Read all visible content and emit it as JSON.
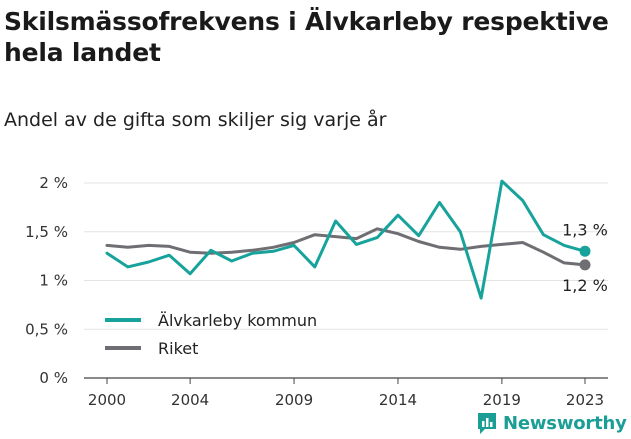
{
  "title": "Skilsmässofrekvens i Älvkarleby respektive hela landet",
  "subtitle": "Andel av de gifta som skiljer sig varje år",
  "brand": {
    "name": "Newsworthy",
    "color": "#1a9e96"
  },
  "chart_data": {
    "type": "line",
    "x": [
      2000,
      2001,
      2002,
      2003,
      2004,
      2005,
      2006,
      2007,
      2008,
      2009,
      2010,
      2011,
      2012,
      2013,
      2014,
      2015,
      2016,
      2017,
      2018,
      2019,
      2020,
      2021,
      2022,
      2023
    ],
    "x_ticks": [
      2000,
      2004,
      2009,
      2014,
      2019,
      2023
    ],
    "ylim": [
      0,
      2
    ],
    "y_ticks": [
      0,
      0.5,
      1,
      1.5,
      2
    ],
    "y_tick_labels": [
      "0 %",
      "0,5 %",
      "1 %",
      "1,5 %",
      "2 %"
    ],
    "grid": true,
    "legend": "bottom-left",
    "series": [
      {
        "name": "Älvkarleby kommun",
        "color": "#17a39b",
        "values": [
          1.28,
          1.14,
          1.19,
          1.26,
          1.07,
          1.31,
          1.2,
          1.28,
          1.3,
          1.36,
          1.14,
          1.61,
          1.37,
          1.44,
          1.67,
          1.46,
          1.8,
          1.5,
          0.82,
          2.02,
          1.82,
          1.47,
          1.36,
          1.3
        ],
        "end_label": "1,3 %"
      },
      {
        "name": "Riket",
        "color": "#6e6e73",
        "values": [
          1.36,
          1.34,
          1.36,
          1.35,
          1.29,
          1.28,
          1.29,
          1.31,
          1.34,
          1.39,
          1.47,
          1.45,
          1.43,
          1.53,
          1.48,
          1.4,
          1.34,
          1.32,
          1.35,
          1.37,
          1.39,
          1.29,
          1.18,
          1.16
        ],
        "end_label": "1,2 %"
      }
    ]
  }
}
